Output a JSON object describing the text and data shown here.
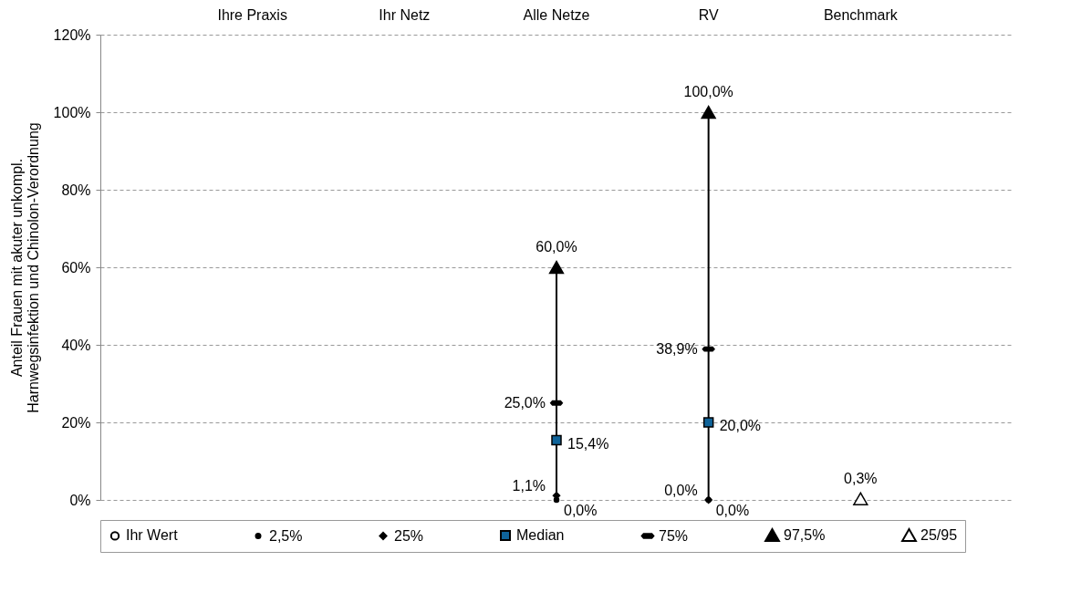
{
  "chart_data": {
    "type": "scatter",
    "ylabel": "Anteil Frauen mit akuter unkompl.\nHarnwegsinfektion und Chinolon-Verordnung",
    "categories": [
      "Ihre Praxis",
      "Ihr Netz",
      "Alle Netze",
      "RV",
      "Benchmark"
    ],
    "ylim": [
      0,
      120
    ],
    "yticks": [
      {
        "value": 0,
        "label": "0%"
      },
      {
        "value": 20,
        "label": "20%"
      },
      {
        "value": 40,
        "label": "40%"
      },
      {
        "value": 60,
        "label": "60%"
      },
      {
        "value": 80,
        "label": "80%"
      },
      {
        "value": 100,
        "label": "100%"
      },
      {
        "value": 120,
        "label": "120%"
      }
    ],
    "grid": "y",
    "legend": "bottom",
    "series": [
      {
        "name": "Ihr Wert",
        "color": "#ffffff",
        "marker": "circle",
        "values": [
          null,
          null,
          null,
          null,
          null
        ]
      },
      {
        "name": "2,5%",
        "color": "#000000",
        "marker": "circle",
        "values": [
          null,
          null,
          0.0,
          0.0,
          null
        ],
        "value_labels": [
          null,
          null,
          "0,0%",
          "0,0%",
          null
        ]
      },
      {
        "name": "25%",
        "color": "#000000",
        "marker": "diamond",
        "values": [
          null,
          null,
          1.1,
          0.0,
          null
        ],
        "value_labels": [
          null,
          null,
          "1,1%",
          "0,0%",
          null
        ]
      },
      {
        "name": "Median",
        "color": "#0f6399",
        "marker": "square",
        "values": [
          null,
          null,
          15.4,
          20.0,
          null
        ],
        "value_labels": [
          null,
          null,
          "15,4%",
          "20,0%",
          null
        ]
      },
      {
        "name": "75%",
        "color": "#000000",
        "values": [
          null,
          null,
          25.0,
          38.9,
          null
        ],
        "value_labels": [
          null,
          null,
          "25,0%",
          "38,9%",
          null
        ]
      },
      {
        "name": "97,5%",
        "color": "#000000",
        "marker": "triangle",
        "values": [
          null,
          null,
          60.0,
          100.0,
          null
        ],
        "value_labels": [
          null,
          null,
          "60,0%",
          "100,0%",
          null
        ]
      },
      {
        "name": "25/95",
        "color": "#ffffff",
        "marker": "triangle",
        "values": [
          null,
          null,
          null,
          null,
          0.3
        ],
        "value_labels": [
          null,
          null,
          null,
          null,
          "0,3%"
        ]
      }
    ]
  }
}
